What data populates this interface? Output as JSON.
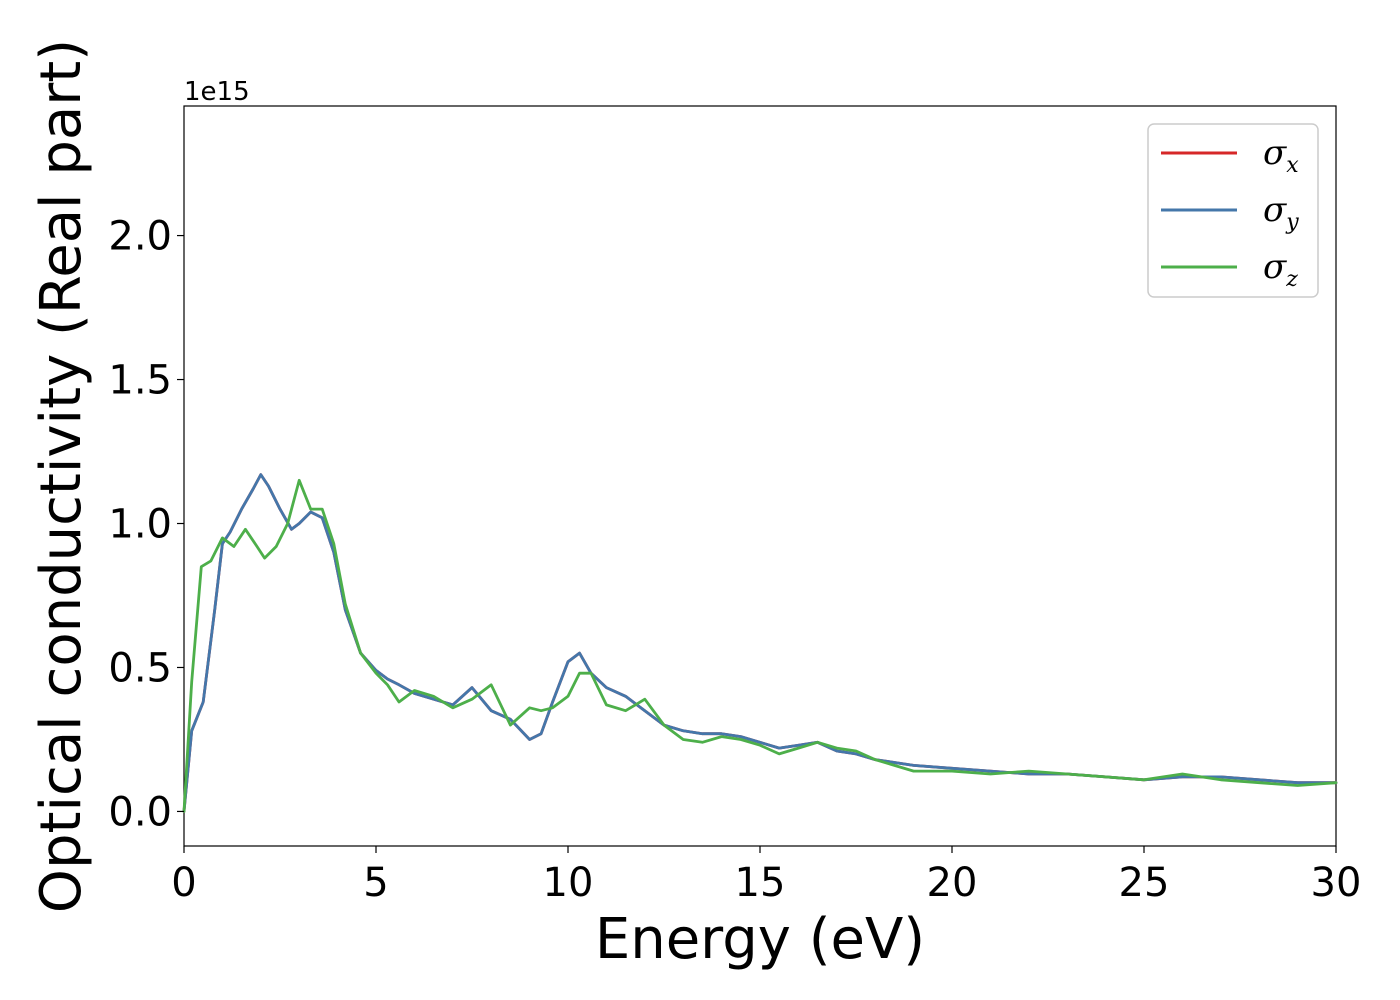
{
  "chart_data": {
    "type": "line",
    "title": "",
    "xlabel": "Energy (eV)",
    "ylabel": "Optical conductivity (Real part)",
    "y_offset_label": "1e15",
    "xlim": [
      0,
      30
    ],
    "ylim": [
      -0.12,
      2.45
    ],
    "xticks": [
      0,
      5,
      10,
      15,
      20,
      25,
      30
    ],
    "xtick_labels": [
      "0",
      "5",
      "10",
      "15",
      "20",
      "25",
      "30"
    ],
    "yticks": [
      0.0,
      0.5,
      1.0,
      1.5,
      2.0
    ],
    "ytick_labels": [
      "0.0",
      "0.5",
      "1.0",
      "1.5",
      "2.0"
    ],
    "grid": false,
    "legend_position": "top-right",
    "series": [
      {
        "name": "σx",
        "legend_base": "σ",
        "legend_sub": "x",
        "color": "#d62728",
        "x": [
          0,
          0.2,
          0.5,
          0.8,
          1.0,
          1.2,
          1.5,
          1.8,
          2.0,
          2.2,
          2.5,
          2.8,
          3.0,
          3.3,
          3.6,
          3.9,
          4.2,
          4.6,
          5.0,
          5.3,
          5.6,
          6.0,
          6.5,
          7.0,
          7.5,
          8.0,
          8.5,
          9.0,
          9.3,
          9.6,
          10.0,
          10.3,
          10.6,
          11.0,
          11.5,
          12.0,
          12.5,
          13.0,
          13.5,
          14.0,
          14.5,
          15.0,
          15.5,
          16.0,
          16.5,
          17.0,
          17.5,
          18.0,
          19.0,
          20.0,
          21.0,
          22.0,
          23.0,
          24.0,
          25.0,
          26.0,
          27.0,
          28.0,
          29.0,
          30.0
        ],
        "values": [
          0.0,
          0.28,
          0.38,
          0.7,
          0.93,
          0.97,
          1.05,
          1.12,
          1.17,
          1.13,
          1.05,
          0.98,
          1.0,
          1.04,
          1.02,
          0.9,
          0.7,
          0.55,
          0.49,
          0.46,
          0.44,
          0.41,
          0.39,
          0.37,
          0.43,
          0.35,
          0.32,
          0.25,
          0.27,
          0.38,
          0.52,
          0.55,
          0.48,
          0.43,
          0.4,
          0.35,
          0.3,
          0.28,
          0.27,
          0.27,
          0.26,
          0.24,
          0.22,
          0.23,
          0.24,
          0.21,
          0.2,
          0.18,
          0.16,
          0.15,
          0.14,
          0.13,
          0.13,
          0.12,
          0.11,
          0.12,
          0.12,
          0.11,
          0.1,
          0.1
        ]
      },
      {
        "name": "σy",
        "legend_base": "σ",
        "legend_sub": "y",
        "color": "#4477aa",
        "x": [
          0,
          0.2,
          0.5,
          0.8,
          1.0,
          1.2,
          1.5,
          1.8,
          2.0,
          2.2,
          2.5,
          2.8,
          3.0,
          3.3,
          3.6,
          3.9,
          4.2,
          4.6,
          5.0,
          5.3,
          5.6,
          6.0,
          6.5,
          7.0,
          7.5,
          8.0,
          8.5,
          9.0,
          9.3,
          9.6,
          10.0,
          10.3,
          10.6,
          11.0,
          11.5,
          12.0,
          12.5,
          13.0,
          13.5,
          14.0,
          14.5,
          15.0,
          15.5,
          16.0,
          16.5,
          17.0,
          17.5,
          18.0,
          19.0,
          20.0,
          21.0,
          22.0,
          23.0,
          24.0,
          25.0,
          26.0,
          27.0,
          28.0,
          29.0,
          30.0
        ],
        "values": [
          0.0,
          0.28,
          0.38,
          0.7,
          0.93,
          0.97,
          1.05,
          1.12,
          1.17,
          1.13,
          1.05,
          0.98,
          1.0,
          1.04,
          1.02,
          0.9,
          0.7,
          0.55,
          0.49,
          0.46,
          0.44,
          0.41,
          0.39,
          0.37,
          0.43,
          0.35,
          0.32,
          0.25,
          0.27,
          0.38,
          0.52,
          0.55,
          0.48,
          0.43,
          0.4,
          0.35,
          0.3,
          0.28,
          0.27,
          0.27,
          0.26,
          0.24,
          0.22,
          0.23,
          0.24,
          0.21,
          0.2,
          0.18,
          0.16,
          0.15,
          0.14,
          0.13,
          0.13,
          0.12,
          0.11,
          0.12,
          0.12,
          0.11,
          0.1,
          0.1
        ]
      },
      {
        "name": "σz",
        "legend_base": "σ",
        "legend_sub": "z",
        "color": "#4daf4a",
        "x": [
          0,
          0.2,
          0.45,
          0.7,
          1.0,
          1.3,
          1.6,
          1.9,
          2.1,
          2.4,
          2.7,
          3.0,
          3.3,
          3.6,
          3.9,
          4.2,
          4.6,
          5.0,
          5.3,
          5.6,
          6.0,
          6.5,
          7.0,
          7.5,
          8.0,
          8.5,
          9.0,
          9.3,
          9.6,
          10.0,
          10.3,
          10.6,
          11.0,
          11.5,
          12.0,
          12.5,
          13.0,
          13.5,
          14.0,
          14.5,
          15.0,
          15.5,
          16.0,
          16.5,
          17.0,
          17.5,
          18.0,
          19.0,
          20.0,
          21.0,
          22.0,
          23.0,
          24.0,
          25.0,
          26.0,
          27.0,
          28.0,
          29.0,
          30.0
        ],
        "values": [
          0.0,
          0.45,
          0.85,
          0.87,
          0.95,
          0.92,
          0.98,
          0.92,
          0.88,
          0.92,
          1.0,
          1.15,
          1.05,
          1.05,
          0.93,
          0.72,
          0.55,
          0.48,
          0.44,
          0.38,
          0.42,
          0.4,
          0.36,
          0.39,
          0.44,
          0.3,
          0.36,
          0.35,
          0.36,
          0.4,
          0.48,
          0.48,
          0.37,
          0.35,
          0.39,
          0.3,
          0.25,
          0.24,
          0.26,
          0.25,
          0.23,
          0.2,
          0.22,
          0.24,
          0.22,
          0.21,
          0.18,
          0.14,
          0.14,
          0.13,
          0.14,
          0.13,
          0.12,
          0.11,
          0.13,
          0.11,
          0.1,
          0.09,
          0.1
        ]
      }
    ]
  }
}
